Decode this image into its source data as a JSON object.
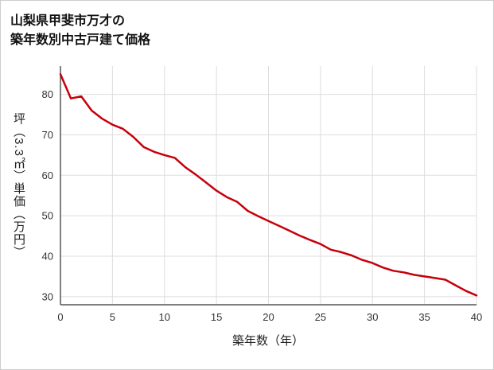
{
  "chart_data": {
    "type": "line",
    "title_lines": [
      "山梨県甲斐市万才の",
      "築年数別中古戸建て価格"
    ],
    "xlabel": "築年数（年）",
    "ylabel": "坪（3.3㎡）単価（万円）",
    "x": [
      0,
      1,
      2,
      3,
      4,
      5,
      6,
      7,
      8,
      9,
      10,
      11,
      12,
      13,
      14,
      15,
      16,
      17,
      18,
      19,
      20,
      21,
      22,
      23,
      24,
      25,
      26,
      27,
      28,
      29,
      30,
      31,
      32,
      33,
      34,
      35,
      36,
      37,
      38,
      39,
      40
    ],
    "values": [
      85,
      79,
      79.5,
      76,
      74,
      72.5,
      71.5,
      69.5,
      67,
      65.8,
      65,
      64.3,
      62,
      60.2,
      58.2,
      56.2,
      54.6,
      53.4,
      51.2,
      49.9,
      48.7,
      47.5,
      46.3,
      45.1,
      44,
      43,
      41.6,
      41,
      40.2,
      39.1,
      38.3,
      37.2,
      36.4,
      36,
      35.4,
      35,
      34.6,
      34.2,
      32.8,
      31.4,
      30.3
    ],
    "xlim": [
      0,
      40
    ],
    "ylim": [
      28,
      87
    ],
    "xticks": [
      0,
      5,
      10,
      15,
      20,
      25,
      30,
      35,
      40
    ],
    "yticks": [
      30,
      40,
      50,
      60,
      70,
      80
    ],
    "grid": true,
    "legend": "none",
    "line_color": "#c7000b",
    "grid_color": "#dddddd",
    "axis_color": "#555555"
  }
}
